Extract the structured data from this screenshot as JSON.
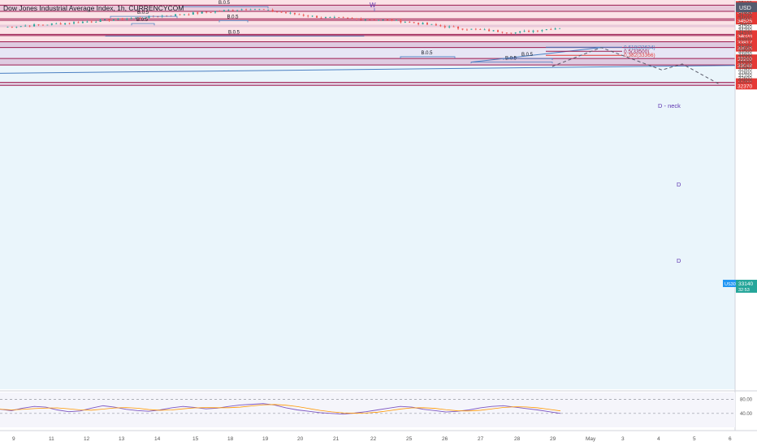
{
  "header": {
    "symbol_title": "Dow Jones Industrial Average Index, 1h, CURRENCYCOM",
    "currency": "USD"
  },
  "colors": {
    "up": "#26a69a",
    "down": "#ef5350",
    "level_line": "#9c1b4f",
    "band_fill": "#d8b4cf",
    "pink_bg": "#fbe3e7",
    "lavender_bg": "#e6e6f5",
    "light_blue_bg": "#eaf5fb",
    "trendline": "#4a7fc2",
    "fib_red": "#e53935",
    "projection": "#5b5b6b",
    "rsi_line": "#7e57c2",
    "rsi_ma": "#ff9800"
  },
  "chart_data": {
    "type": "candlestick",
    "title": "Dow Jones Industrial Average Index, 1h, CURRENCYCOM",
    "interval": "1h",
    "ylim": [
      22300,
      35200
    ],
    "y_axis_ticks": [
      35100,
      34900,
      34800,
      34700,
      34600,
      34400,
      34300,
      34200,
      34100,
      33900,
      33700,
      33600,
      33500,
      33400,
      33300,
      33200,
      33100,
      33000,
      32900,
      32800,
      32700,
      32600,
      32500
    ],
    "x_ticks": [
      "9",
      "11",
      "12",
      "13",
      "14",
      "15",
      "18",
      "19",
      "20",
      "21",
      "22",
      "25",
      "26",
      "27",
      "28",
      "29",
      "May",
      "3",
      "4",
      "5",
      "6",
      "9"
    ],
    "price_path": [
      [
        0,
        34300
      ],
      [
        4,
        34450
      ],
      [
        10,
        34720
      ],
      [
        14,
        34920
      ],
      [
        18,
        34620
      ],
      [
        22,
        34530
      ],
      [
        26,
        34250
      ],
      [
        29,
        34120
      ],
      [
        33,
        34380
      ],
      [
        37,
        34200
      ],
      [
        40,
        34520
      ],
      [
        44,
        34300
      ],
      [
        48,
        34150
      ],
      [
        52,
        34380
      ],
      [
        56,
        34600
      ],
      [
        60,
        34720
      ],
      [
        64,
        34560
      ],
      [
        68,
        34380
      ],
      [
        71,
        34650
      ],
      [
        75,
        34480
      ],
      [
        79,
        34700
      ],
      [
        82,
        35000
      ],
      [
        85,
        35150
      ],
      [
        88,
        35250
      ],
      [
        91,
        35220
      ],
      [
        93,
        34950
      ],
      [
        95,
        34780
      ],
      [
        98,
        34720
      ],
      [
        101,
        34660
      ],
      [
        103,
        34200
      ],
      [
        106,
        33700
      ],
      [
        109,
        33450
      ],
      [
        112,
        33650
      ],
      [
        115,
        33800
      ],
      [
        117,
        34120
      ],
      [
        120,
        33950
      ],
      [
        123,
        33620
      ],
      [
        126,
        33250
      ],
      [
        129,
        33520
      ],
      [
        132,
        33380
      ],
      [
        135,
        33300
      ],
      [
        138,
        33560
      ],
      [
        141,
        33480
      ],
      [
        143,
        33850
      ],
      [
        145,
        34020
      ],
      [
        147,
        33780
      ],
      [
        149,
        33950
      ],
      [
        151,
        33700
      ],
      [
        153,
        33400
      ],
      [
        155,
        33000
      ]
    ],
    "horizontal_levels": [
      {
        "price": 35030,
        "label": "35030"
      },
      {
        "price": 34825,
        "label": "34825"
      },
      {
        "price": 34576,
        "label": "34576"
      },
      {
        "price": 34525,
        "label": "34525"
      },
      {
        "price": 34060,
        "label": "34060"
      },
      {
        "price": 34020,
        "label": "34020"
      },
      {
        "price": 33817,
        "label": "33817"
      },
      {
        "price": 33625,
        "label": "33625"
      },
      {
        "price": 33260,
        "label": "33260"
      },
      {
        "price": 33048,
        "label": "33048"
      },
      {
        "price": 32470,
        "label": "32470"
      },
      {
        "price": 32370,
        "label": "32370"
      }
    ],
    "current_price": {
      "label": "US30",
      "value": "33140",
      "sub": "32:53"
    },
    "annotations": {
      "pattern_w": "W",
      "d_neck": "D - neck",
      "d_upper": "D",
      "d_lower": "D",
      "bo5": "B.0.5"
    },
    "fib_levels": [
      {
        "label": "0.618(33634)",
        "price": 33634,
        "color": "#4a7fc2"
      },
      {
        "label": "0.5(33500)",
        "price": 33500,
        "color": "#9c1b4f"
      },
      {
        "label": "0.382(33366)",
        "price": 33366,
        "color": "#e53935"
      }
    ],
    "rsi": {
      "levels": [
        "80.00",
        "40.00"
      ],
      "values": [
        52,
        48,
        55,
        60,
        58,
        50,
        45,
        47,
        55,
        62,
        58,
        52,
        48,
        46,
        50,
        56,
        60,
        57,
        53,
        55,
        60,
        64,
        66,
        68,
        64,
        56,
        50,
        46,
        42,
        40,
        38,
        41,
        45,
        50,
        55,
        60,
        58,
        52,
        48,
        44,
        46,
        50,
        56,
        60,
        62,
        58,
        54,
        50,
        45,
        40
      ]
    }
  }
}
